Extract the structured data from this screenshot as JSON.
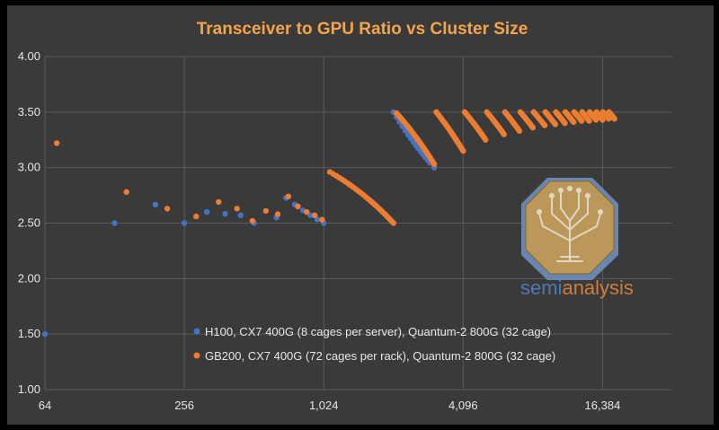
{
  "chart_data": {
    "type": "scatter",
    "title": "Transceiver to GPU Ratio vs Cluster Size",
    "xlabel": "",
    "ylabel": "",
    "x_scale": "log2",
    "xlim": [
      64,
      32768
    ],
    "ylim": [
      1.0,
      4.0
    ],
    "x_ticks": [
      64,
      256,
      1024,
      4096,
      16384
    ],
    "x_tick_labels": [
      "64",
      "256",
      "1,024",
      "4,096",
      "16,384"
    ],
    "y_ticks": [
      1.0,
      1.5,
      2.0,
      2.5,
      3.0,
      3.5,
      4.0
    ],
    "y_tick_labels": [
      "1.00",
      "1.50",
      "2.00",
      "2.50",
      "3.00",
      "3.50",
      "4.00"
    ],
    "grid": true,
    "legend_position": "bottom-center",
    "series": [
      {
        "name": "H100, CX7 400G (8 cages per server), Quantum-2 800G (32 cage)",
        "color": "#4472c4",
        "points": [
          [
            64,
            1.5
          ],
          [
            128,
            2.5
          ],
          [
            192,
            2.667
          ],
          [
            256,
            2.5
          ],
          [
            320,
            2.6
          ],
          [
            384,
            2.583
          ],
          [
            448,
            2.571
          ],
          [
            512,
            2.5
          ],
          [
            640,
            2.55
          ],
          [
            704,
            2.727
          ],
          [
            768,
            2.667
          ],
          [
            832,
            2.615
          ],
          [
            896,
            2.571
          ],
          [
            960,
            2.533
          ],
          [
            1024,
            2.5
          ],
          [
            2048,
            3.5
          ],
          [
            2112,
            3.455
          ],
          [
            2176,
            3.412
          ],
          [
            2240,
            3.371
          ],
          [
            2304,
            3.333
          ],
          [
            2368,
            3.297
          ],
          [
            2432,
            3.263
          ],
          [
            2496,
            3.231
          ],
          [
            2560,
            3.2
          ],
          [
            2624,
            3.171
          ],
          [
            2688,
            3.143
          ],
          [
            2752,
            3.116
          ],
          [
            2816,
            3.091
          ],
          [
            2880,
            3.067
          ],
          [
            2944,
            3.043
          ],
          [
            3072,
            3.0
          ]
        ]
      },
      {
        "name": "GB200, CX7 400G (72 cages per rack), Quantum-2 800G (32 cage)",
        "color": "#ed7d31",
        "points": [
          [
            72,
            3.22
          ],
          [
            144,
            2.78
          ],
          [
            216,
            2.63
          ],
          [
            288,
            2.56
          ],
          [
            360,
            2.69
          ],
          [
            432,
            2.63
          ],
          [
            504,
            2.52
          ],
          [
            576,
            2.61
          ],
          [
            648,
            2.58
          ],
          [
            720,
            2.74
          ],
          [
            792,
            2.65
          ],
          [
            864,
            2.6
          ],
          [
            936,
            2.57
          ],
          [
            1008,
            2.53
          ]
        ],
        "curves": [
          {
            "x_start": 1088,
            "x_end": 2048,
            "y_start": 2.96,
            "y_end": 2.5,
            "points": 28
          },
          {
            "x_start": 2112,
            "x_end": 3072,
            "y_start": 3.49,
            "y_end": 3.03,
            "points": 28
          },
          {
            "x_start": 3136,
            "x_end": 4096,
            "y_start": 3.5,
            "y_end": 3.15,
            "points": 22
          },
          {
            "x_start": 4160,
            "x_end": 5120,
            "y_start": 3.5,
            "y_end": 3.25,
            "points": 16
          },
          {
            "x_start": 5184,
            "x_end": 6144,
            "y_start": 3.5,
            "y_end": 3.3,
            "points": 14
          },
          {
            "x_start": 6208,
            "x_end": 7168,
            "y_start": 3.5,
            "y_end": 3.33,
            "points": 12
          },
          {
            "x_start": 7232,
            "x_end": 8192,
            "y_start": 3.5,
            "y_end": 3.36,
            "points": 12
          },
          {
            "x_start": 8256,
            "x_end": 9216,
            "y_start": 3.5,
            "y_end": 3.38,
            "points": 10
          },
          {
            "x_start": 9280,
            "x_end": 10240,
            "y_start": 3.5,
            "y_end": 3.39,
            "points": 10
          },
          {
            "x_start": 10304,
            "x_end": 11264,
            "y_start": 3.5,
            "y_end": 3.4,
            "points": 10
          },
          {
            "x_start": 11328,
            "x_end": 12288,
            "y_start": 3.5,
            "y_end": 3.41,
            "points": 9
          },
          {
            "x_start": 12352,
            "x_end": 13312,
            "y_start": 3.5,
            "y_end": 3.42,
            "points": 9
          },
          {
            "x_start": 13376,
            "x_end": 14336,
            "y_start": 3.5,
            "y_end": 3.42,
            "points": 9
          },
          {
            "x_start": 14400,
            "x_end": 15360,
            "y_start": 3.5,
            "y_end": 3.43,
            "points": 8
          },
          {
            "x_start": 15424,
            "x_end": 16384,
            "y_start": 3.5,
            "y_end": 3.43,
            "points": 8
          },
          {
            "x_start": 16448,
            "x_end": 17408,
            "y_start": 3.5,
            "y_end": 3.44,
            "points": 8
          },
          {
            "x_start": 17472,
            "x_end": 18432,
            "y_start": 3.5,
            "y_end": 3.44,
            "points": 8
          }
        ]
      }
    ]
  },
  "watermark": {
    "text_part1": "semi",
    "text_part2": "analysis",
    "color1": "#4f7fc1",
    "color2": "#e0843a"
  },
  "colors": {
    "background": "#3a3a3a",
    "grid": "#5a5a5a",
    "title": "#f5a44a",
    "text": "#e6e6e6"
  }
}
